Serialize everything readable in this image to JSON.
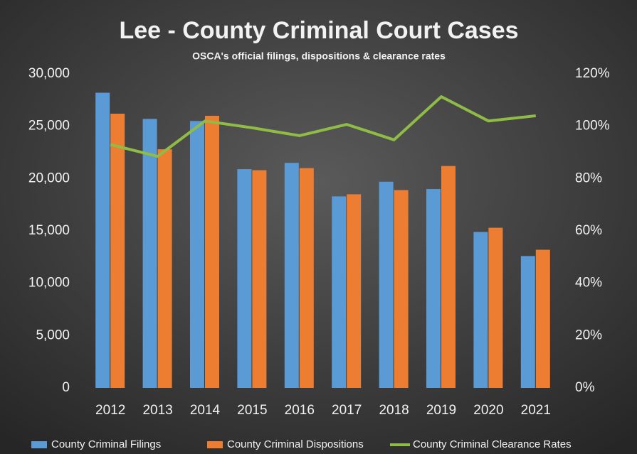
{
  "chart_data": {
    "type": "bar",
    "title": "Lee - County Criminal Court Cases",
    "subtitle": "OSCA's official filings, dispositions & clearance rates",
    "categories": [
      "2012",
      "2013",
      "2014",
      "2015",
      "2016",
      "2017",
      "2018",
      "2019",
      "2020",
      "2021"
    ],
    "series": [
      {
        "name": "County Criminal Filings",
        "color": "#5b9bd5",
        "type": "bar",
        "values": [
          28200,
          25700,
          25500,
          20900,
          21500,
          18300,
          19700,
          19000,
          14900,
          12600
        ]
      },
      {
        "name": "County Criminal Dispositions",
        "color": "#ed7d31",
        "type": "bar",
        "values": [
          26200,
          22800,
          26000,
          20800,
          21000,
          18500,
          18900,
          21200,
          15300,
          13200
        ]
      },
      {
        "name": "County Criminal Clearance Rates",
        "color": "#8fbc45",
        "type": "line",
        "axis": "y2",
        "values": [
          93,
          88.5,
          102,
          99.4,
          96.4,
          100.7,
          94.8,
          111.3,
          102,
          104
        ]
      }
    ],
    "ylim": [
      0,
      30000
    ],
    "yticks": [
      0,
      {
        "value": 5000,
        "label": "5,000"
      },
      {
        "value": 10000,
        "label": "10,000"
      },
      {
        "value": 15000,
        "label": "15,000"
      },
      {
        "value": 20000,
        "label": "20,000"
      },
      {
        "value": 25000,
        "label": "25,000"
      },
      {
        "value": 30000,
        "label": "30,000"
      }
    ],
    "y2lim": [
      0,
      120
    ],
    "y2ticks": [
      {
        "value": 0,
        "label": "0%"
      },
      {
        "value": 20,
        "label": "20%"
      },
      {
        "value": 40,
        "label": "40%"
      },
      {
        "value": 60,
        "label": "60%"
      },
      {
        "value": 80,
        "label": "80%"
      },
      {
        "value": 100,
        "label": "100%"
      },
      {
        "value": 120,
        "label": "120%"
      }
    ],
    "legend": "bottom"
  }
}
